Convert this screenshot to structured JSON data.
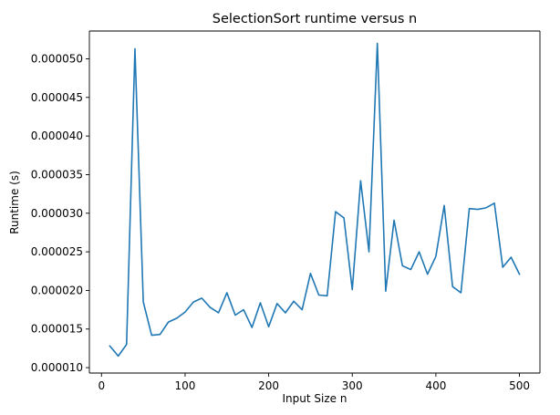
{
  "chart_data": {
    "type": "line",
    "title": "SelectionSort runtime versus n",
    "xlabel": "Input Size n",
    "ylabel": "Runtime (s)",
    "xlim": [
      -14.5,
      524.5
    ],
    "ylim": [
      9.3e-06,
      5.36e-05
    ],
    "xticks": [
      0,
      100,
      200,
      300,
      400,
      500
    ],
    "yticks": [
      1e-05,
      1.5e-05,
      2e-05,
      2.5e-05,
      3e-05,
      3.5e-05,
      4e-05,
      4.5e-05,
      5e-05
    ],
    "xtick_labels": [
      "0",
      "100",
      "200",
      "300",
      "400",
      "500"
    ],
    "ytick_labels": [
      "0.000010",
      "0.000015",
      "0.000020",
      "0.000025",
      "0.000030",
      "0.000035",
      "0.000040",
      "0.000045",
      "0.000050"
    ],
    "grid": false,
    "series": [
      {
        "color": "#1f77b4",
        "x": [
          10,
          20,
          30,
          40,
          50,
          60,
          70,
          80,
          90,
          100,
          110,
          120,
          130,
          140,
          150,
          160,
          170,
          180,
          190,
          200,
          210,
          220,
          230,
          240,
          250,
          260,
          270,
          280,
          290,
          300,
          310,
          320,
          330,
          340,
          350,
          360,
          370,
          380,
          390,
          400,
          410,
          420,
          430,
          440,
          450,
          460,
          470,
          480,
          490,
          500
        ],
        "y": [
          1.28e-05,
          1.15e-05,
          1.3e-05,
          5.13e-05,
          1.85e-05,
          1.42e-05,
          1.43e-05,
          1.59e-05,
          1.64e-05,
          1.72e-05,
          1.85e-05,
          1.9e-05,
          1.78e-05,
          1.71e-05,
          1.97e-05,
          1.68e-05,
          1.75e-05,
          1.52e-05,
          1.84e-05,
          1.53e-05,
          1.83e-05,
          1.71e-05,
          1.86e-05,
          1.75e-05,
          2.22e-05,
          1.94e-05,
          1.93e-05,
          3.02e-05,
          2.94e-05,
          2.01e-05,
          3.42e-05,
          2.5e-05,
          5.2e-05,
          1.99e-05,
          2.91e-05,
          2.32e-05,
          2.27e-05,
          2.5e-05,
          2.21e-05,
          2.44e-05,
          3.1e-05,
          2.05e-05,
          1.97e-05,
          3.06e-05,
          3.05e-05,
          3.07e-05,
          3.13e-05,
          2.3e-05,
          2.43e-05,
          2.21e-05
        ]
      }
    ]
  }
}
